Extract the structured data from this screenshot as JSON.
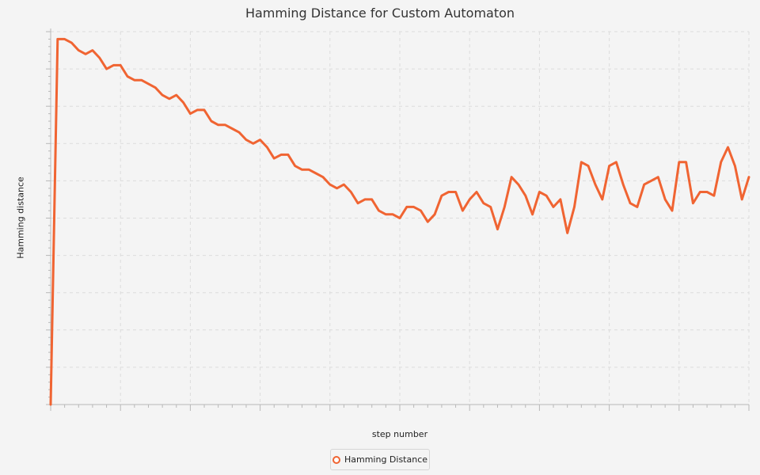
{
  "chart_data": {
    "type": "line",
    "title": "Hamming Distance for Custom Automaton",
    "xlabel": "step number",
    "ylabel": "Hamming distance",
    "xlim": [
      0,
      100
    ],
    "ylim": [
      0,
      100
    ],
    "grid": true,
    "legend_position": "bottom",
    "series": [
      {
        "name": "Hamming Distance",
        "color": "#f06432",
        "x": [
          0,
          1,
          2,
          3,
          4,
          5,
          6,
          7,
          8,
          9,
          10,
          11,
          12,
          13,
          14,
          15,
          16,
          17,
          18,
          19,
          20,
          21,
          22,
          23,
          24,
          25,
          26,
          27,
          28,
          29,
          30,
          31,
          32,
          33,
          34,
          35,
          36,
          37,
          38,
          39,
          40,
          41,
          42,
          43,
          44,
          45,
          46,
          47,
          48,
          49,
          50,
          51,
          52,
          53,
          54,
          55,
          56,
          57,
          58,
          59,
          60,
          61,
          62,
          63,
          64,
          65,
          66,
          67,
          68,
          69,
          70,
          71,
          72,
          73,
          74,
          75,
          76,
          77,
          78,
          79,
          80,
          81,
          82,
          83,
          84,
          85,
          86,
          87,
          88,
          89,
          90,
          91,
          92,
          93,
          94,
          95,
          96,
          97,
          98,
          99,
          100
        ],
        "values": [
          0,
          98,
          98,
          97,
          95,
          94,
          95,
          93,
          90,
          91,
          91,
          88,
          87,
          87,
          86,
          85,
          83,
          82,
          83,
          81,
          78,
          79,
          79,
          76,
          75,
          75,
          74,
          73,
          71,
          70,
          71,
          69,
          66,
          67,
          67,
          64,
          63,
          63,
          62,
          61,
          59,
          58,
          59,
          57,
          54,
          55,
          55,
          52,
          51,
          51,
          50,
          53,
          53,
          52,
          49,
          51,
          56,
          57,
          57,
          52,
          55,
          57,
          54,
          53,
          47,
          53,
          61,
          59,
          56,
          51,
          57,
          56,
          53,
          55,
          46,
          53,
          65,
          64,
          59,
          55,
          64,
          65,
          59,
          54,
          53,
          59,
          60,
          61,
          55,
          52,
          65,
          65,
          54,
          57,
          57,
          56,
          65,
          69,
          64,
          55,
          61
        ]
      }
    ]
  }
}
